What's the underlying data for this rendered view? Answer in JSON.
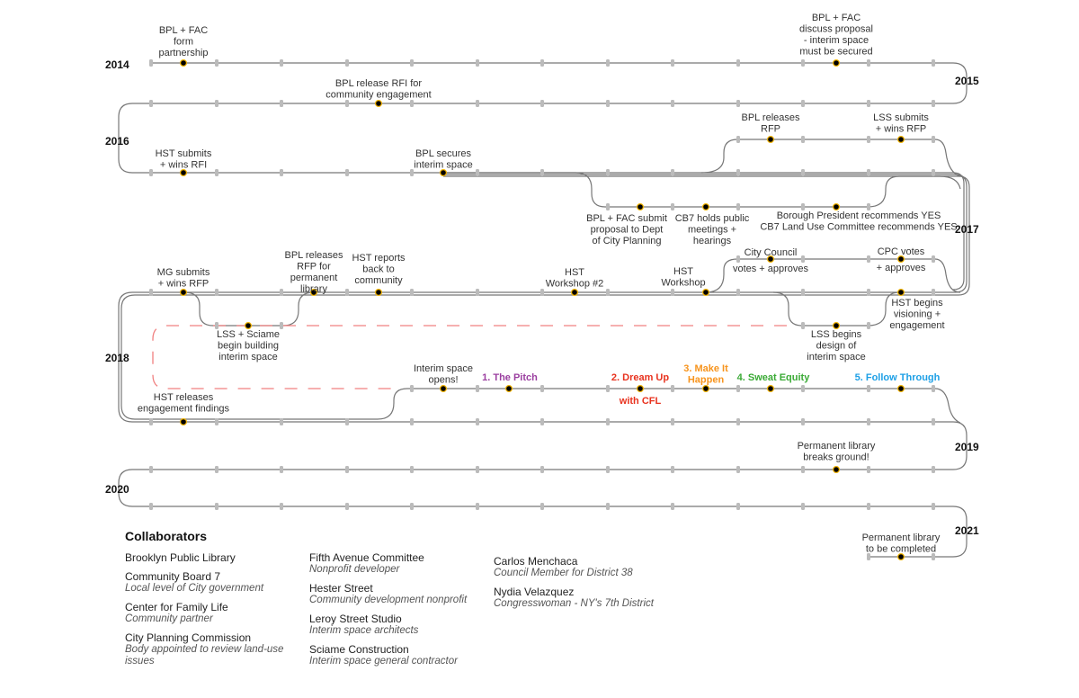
{
  "years": [
    "2014",
    "2015",
    "2016",
    "2017",
    "2018",
    "2019",
    "2020",
    "2021"
  ],
  "colors": {
    "line": "#777777",
    "tick": "#bbbbbb",
    "dot": "#000000",
    "dot_outline": "#f2b400",
    "dashed": "#f08080"
  },
  "events": [
    {
      "lines": [
        "BPL + FAC",
        "form",
        "partnership"
      ]
    },
    {
      "lines": [
        "BPL + FAC",
        "discuss proposal",
        "- interim space",
        "must be secured"
      ]
    },
    {
      "lines": [
        "BPL release RFI for",
        "community engagement"
      ]
    },
    {
      "lines": [
        "HST submits",
        "+ wins RFI"
      ]
    },
    {
      "lines": [
        "BPL secures",
        "interim space"
      ]
    },
    {
      "lines": [
        "BPL releases",
        "RFP"
      ]
    },
    {
      "lines": [
        "LSS submits",
        "+ wins RFP"
      ]
    },
    {
      "lines": [
        "BPL + FAC submit",
        "proposal to Dept",
        "of City Planning"
      ]
    },
    {
      "lines": [
        "CB7 holds public",
        "meetings +",
        "hearings"
      ]
    },
    {
      "lines": [
        "Borough President recommends YES",
        "CB7 Land Use Committee recommends YES"
      ]
    },
    {
      "lines": [
        "MG submits",
        "+ wins RFP"
      ]
    },
    {
      "lines": [
        "BPL releases",
        "RFP for",
        "permanent",
        "library"
      ]
    },
    {
      "lines": [
        "HST reports",
        "back to",
        "community"
      ]
    },
    {
      "lines": [
        "HST",
        "Workshop #2"
      ]
    },
    {
      "lines": [
        "HST",
        "Workshop"
      ]
    },
    {
      "lines": [
        "City Council"
      ]
    },
    {
      "lines": [
        "votes + approves"
      ]
    },
    {
      "lines": [
        "CPC votes"
      ]
    },
    {
      "lines": [
        "+ approves"
      ]
    },
    {
      "lines": [
        "HST begins",
        "visioning +",
        "engagement"
      ]
    },
    {
      "lines": [
        "LSS + Sciame",
        "begin building",
        "interim space"
      ]
    },
    {
      "lines": [
        "LSS begins",
        "design of",
        "interim space"
      ]
    },
    {
      "lines": [
        "Interim space",
        "opens!"
      ]
    },
    {
      "lines": [
        "HST releases",
        "engagement findings"
      ]
    },
    {
      "lines": [
        "Permanent library",
        "breaks ground!"
      ]
    },
    {
      "lines": [
        "Permanent library",
        "to be completed"
      ]
    }
  ],
  "phases": [
    {
      "lines": [
        "1. The Pitch"
      ],
      "color": "#9b3fa0"
    },
    {
      "lines": [
        "2. Dream Up"
      ],
      "color": "#e8321e"
    },
    {
      "lines": [
        "with CFL"
      ],
      "color": "#e8321e"
    },
    {
      "lines": [
        "3. Make It",
        "Happen"
      ],
      "color": "#f7941d"
    },
    {
      "lines": [
        "4. Sweat Equity"
      ],
      "color": "#3aaa35"
    },
    {
      "lines": [
        "5. Follow Through"
      ],
      "color": "#1ea0e6"
    }
  ],
  "collaborators": {
    "title": "Collaborators",
    "columns": [
      [
        {
          "name": "Brooklyn Public Library",
          "desc": ""
        },
        {
          "name": "Community Board 7",
          "desc": "Local level of City government"
        },
        {
          "name": "Center for Family Life",
          "desc": "Community partner"
        },
        {
          "name": "City Planning Commission",
          "desc": "Body appointed to review land-use issues"
        }
      ],
      [
        {
          "name": "Fifth Avenue Committee",
          "desc": "Nonprofit developer"
        },
        {
          "name": "Hester Street",
          "desc": "Community development nonprofit"
        },
        {
          "name": "Leroy Street Studio",
          "desc": "Interim space architects"
        },
        {
          "name": "Sciame Construction",
          "desc": "Interim space general contractor"
        }
      ],
      [
        {
          "name": "Carlos Menchaca",
          "desc": "Council Member for District 38"
        },
        {
          "name": "Nydia Velazquez",
          "desc": "Congresswoman - NY's 7th District"
        }
      ]
    ]
  }
}
